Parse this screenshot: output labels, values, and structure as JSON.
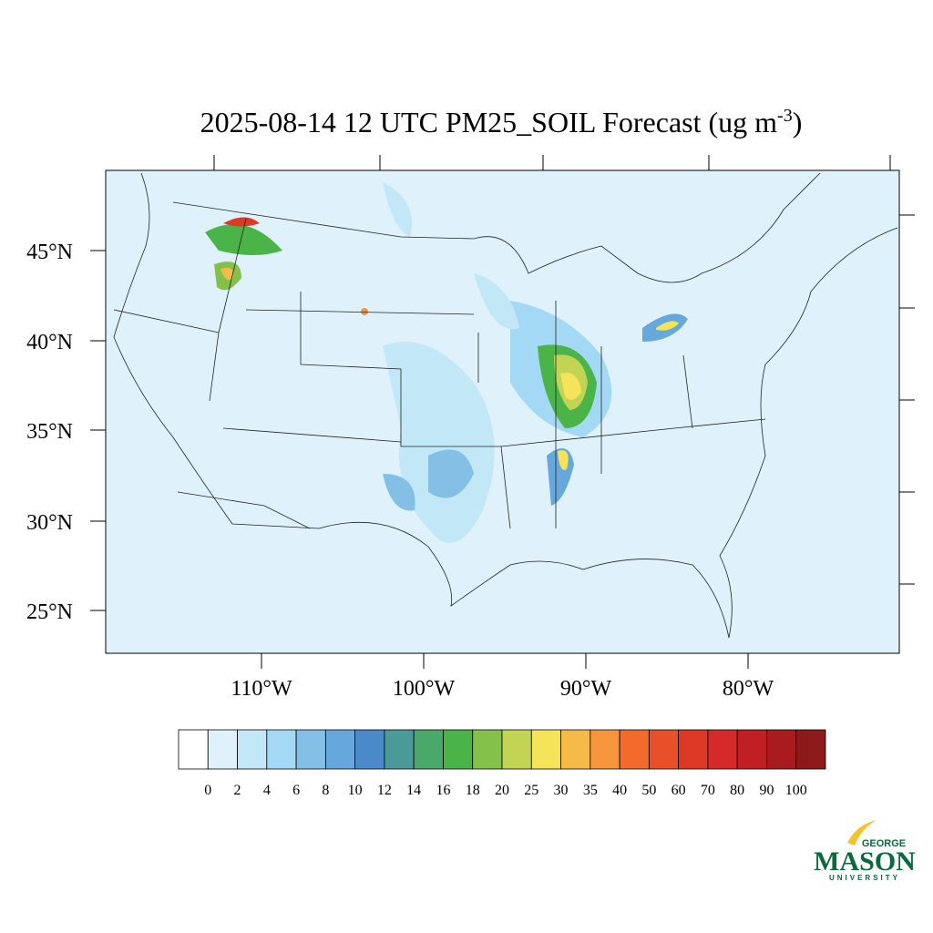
{
  "title": {
    "main": "2025-08-14 12 UTC PM25_SOIL Forecast (ug m",
    "superscript": "-3",
    "close": ")"
  },
  "map": {
    "lat_labels": [
      "45°N",
      "40°N",
      "35°N",
      "30°N",
      "25°N"
    ],
    "lon_labels": [
      "110°W",
      "100°W",
      "90°W",
      "80°W"
    ]
  },
  "colorbar": {
    "levels": [
      0,
      2,
      4,
      6,
      8,
      10,
      12,
      14,
      16,
      18,
      20,
      25,
      30,
      35,
      40,
      50,
      60,
      70,
      80,
      90,
      100
    ],
    "colors": [
      "#ffffff",
      "#dff2fb",
      "#c2e8f8",
      "#a3d9f5",
      "#84c0e6",
      "#66a8db",
      "#4a8ac8",
      "#4b9a9a",
      "#4aa86a",
      "#4ab448",
      "#84c14b",
      "#c2d454",
      "#f5e45a",
      "#f5bb48",
      "#f5963c",
      "#f26b2c",
      "#e8502a",
      "#dd3a26",
      "#d42a2a",
      "#c01f24",
      "#a81c20",
      "#8c1a1a"
    ]
  },
  "logo": {
    "top": "GEORGE",
    "main": "MASON",
    "bottom": "UNIVERSITY"
  }
}
